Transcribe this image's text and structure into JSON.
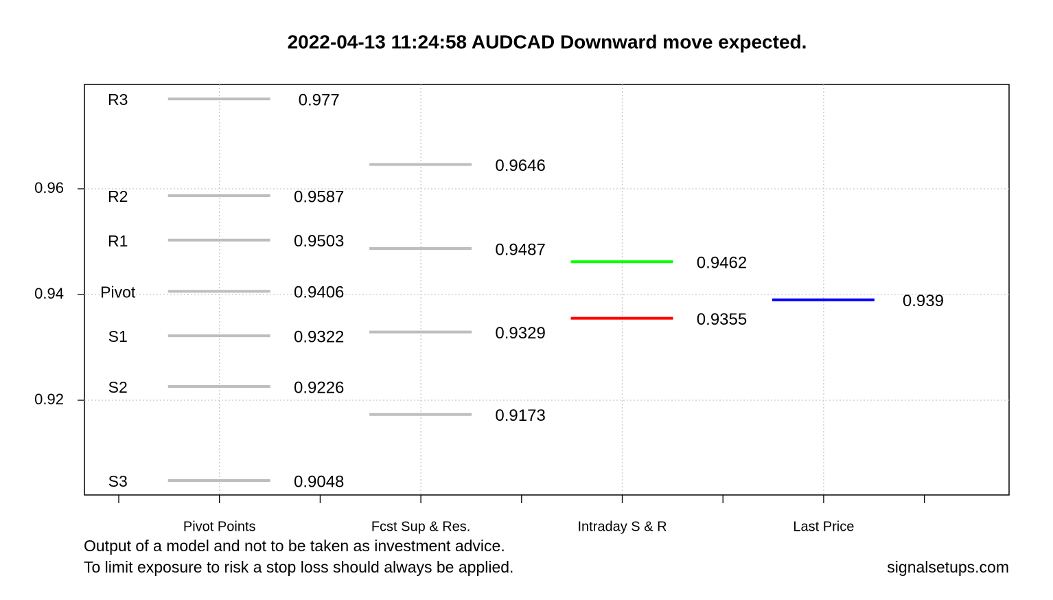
{
  "chart_data": {
    "type": "levels",
    "title": "2022-04-13 11:24:58 AUDCAD Downward move expected.",
    "groups": [
      {
        "name": "Pivot Points",
        "levels": [
          {
            "label": "R3",
            "value": 0.977,
            "color": "#bebebe"
          },
          {
            "label": "R2",
            "value": 0.9587,
            "color": "#bebebe"
          },
          {
            "label": "R1",
            "value": 0.9503,
            "color": "#bebebe"
          },
          {
            "label": "Pivot",
            "value": 0.9406,
            "color": "#bebebe"
          },
          {
            "label": "S1",
            "value": 0.9322,
            "color": "#bebebe"
          },
          {
            "label": "S2",
            "value": 0.9226,
            "color": "#bebebe"
          },
          {
            "label": "S3",
            "value": 0.9048,
            "color": "#bebebe"
          }
        ]
      },
      {
        "name": "Fcst Sup & Res.",
        "levels": [
          {
            "value": 0.9646,
            "color": "#bebebe"
          },
          {
            "value": 0.9487,
            "color": "#bebebe"
          },
          {
            "value": 0.9329,
            "color": "#bebebe"
          },
          {
            "value": 0.9173,
            "color": "#bebebe"
          }
        ]
      },
      {
        "name": "Intraday S & R",
        "levels": [
          {
            "value": 0.9462,
            "color": "#00ff00"
          },
          {
            "value": 0.9355,
            "color": "#ff0000"
          }
        ]
      },
      {
        "name": "Last Price",
        "levels": [
          {
            "value": 0.939,
            "color": "#0000ff"
          }
        ]
      }
    ],
    "ylim": [
      0.90208,
      0.97974
    ],
    "yticks": [
      0.92,
      0.94,
      0.96
    ],
    "grid": true,
    "notes": [
      "Output of a model and not to be taken as investment advice.",
      "To limit exposure to risk a stop loss should always be applied."
    ],
    "source": "signalsetups.com"
  }
}
